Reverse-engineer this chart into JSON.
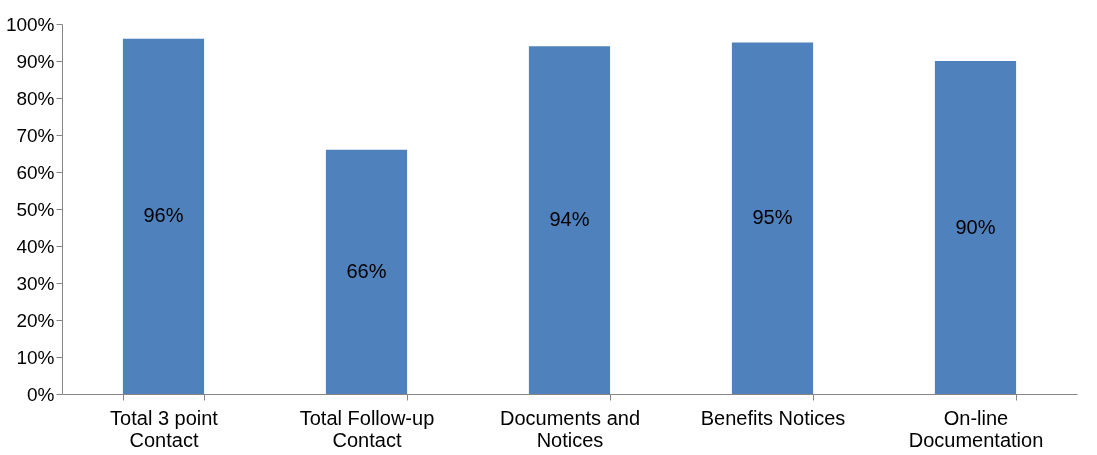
{
  "chart_data": {
    "type": "bar",
    "categories": [
      "Total 3 point Contact",
      "Total Follow-up Contact",
      "Documents and Notices",
      "Benefits Notices",
      "On-line Documentation"
    ],
    "values": [
      96,
      66,
      94,
      95,
      90
    ],
    "value_labels": [
      "96%",
      "66%",
      "94%",
      "95%",
      "90%"
    ],
    "color": "#4f81bd",
    "ylim": [
      0,
      100
    ],
    "yticks": [
      {
        "value": 0,
        "label": "0%"
      },
      {
        "value": 10,
        "label": "10%"
      },
      {
        "value": 20,
        "label": "20%"
      },
      {
        "value": 30,
        "label": "30%"
      },
      {
        "value": 40,
        "label": "40%"
      },
      {
        "value": 50,
        "label": "50%"
      },
      {
        "value": 60,
        "label": "60%"
      },
      {
        "value": 70,
        "label": "70%"
      },
      {
        "value": 80,
        "label": "80%"
      },
      {
        "value": 90,
        "label": "90%"
      },
      {
        "value": 100,
        "label": "100%"
      }
    ],
    "grid": false,
    "legend": false
  }
}
